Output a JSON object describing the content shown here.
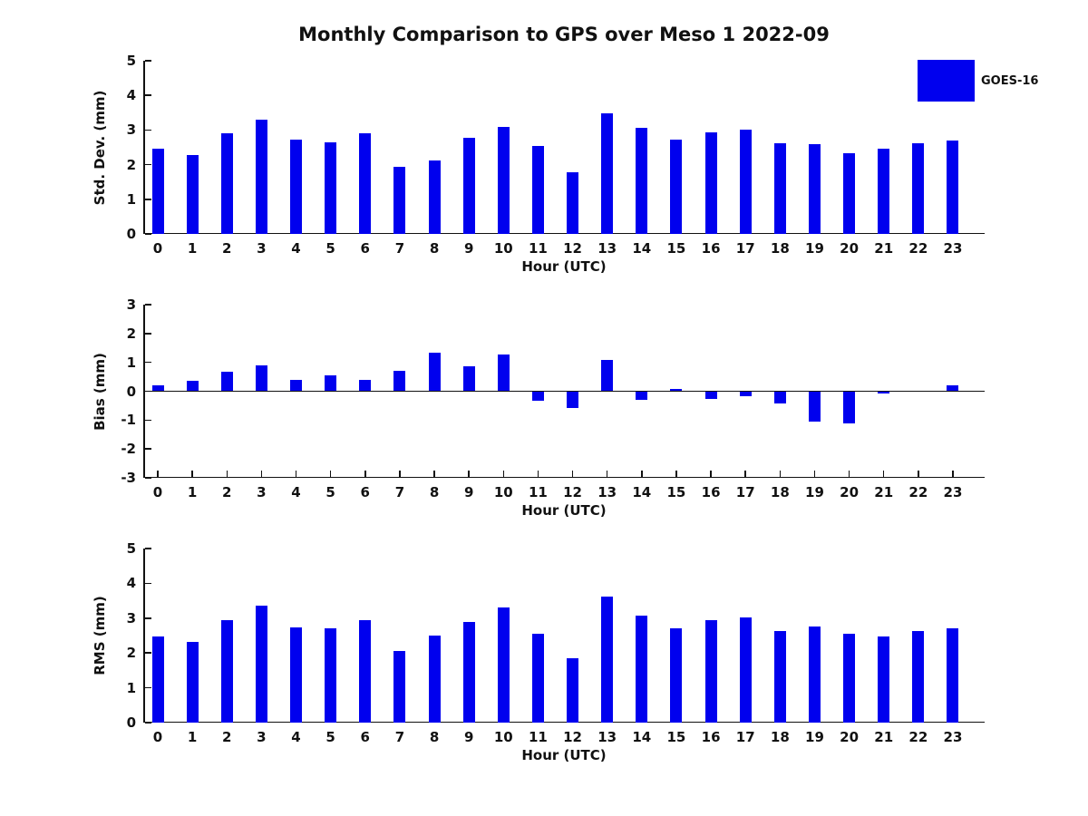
{
  "title": "Monthly Comparison to GPS over Meso 1 2022-09",
  "legend": {
    "label": "GOES-16",
    "color": "#0000ee",
    "position": "top-right"
  },
  "axis_color": "#111111",
  "chart_data": [
    {
      "type": "bar",
      "ylabel": "Std. Dev. (mm)",
      "xlabel": "Hour (UTC)",
      "ylim": [
        0,
        5
      ],
      "yticks": [
        0,
        1,
        2,
        3,
        4,
        5
      ],
      "grid": false,
      "zero_line": false,
      "categories": [
        0,
        1,
        2,
        3,
        4,
        5,
        6,
        7,
        8,
        9,
        10,
        11,
        12,
        13,
        14,
        15,
        16,
        17,
        18,
        19,
        20,
        21,
        22,
        23
      ],
      "series": [
        {
          "name": "GOES-16",
          "values": [
            2.45,
            2.28,
            2.9,
            3.3,
            2.72,
            2.64,
            2.9,
            1.94,
            2.12,
            2.78,
            3.09,
            2.55,
            1.77,
            3.49,
            3.05,
            2.72,
            2.93,
            3.02,
            2.62,
            2.58,
            2.33,
            2.47,
            2.63,
            2.69
          ]
        }
      ]
    },
    {
      "type": "bar",
      "ylabel": "Bias (mm)",
      "xlabel": "Hour (UTC)",
      "ylim": [
        -3,
        3
      ],
      "yticks": [
        3,
        2,
        1,
        0,
        -1,
        -2,
        -3
      ],
      "grid": false,
      "zero_line": true,
      "categories": [
        0,
        1,
        2,
        3,
        4,
        5,
        6,
        7,
        8,
        9,
        10,
        11,
        12,
        13,
        14,
        15,
        16,
        17,
        18,
        19,
        20,
        21,
        22,
        23
      ],
      "series": [
        {
          "name": "GOES-16",
          "values": [
            0.2,
            0.35,
            0.68,
            0.88,
            0.38,
            0.55,
            0.4,
            0.7,
            1.32,
            0.86,
            1.26,
            -0.33,
            -0.57,
            1.07,
            -0.3,
            0.07,
            -0.27,
            -0.17,
            -0.42,
            -1.05,
            -1.1,
            -0.08,
            0.0,
            0.19
          ]
        }
      ]
    },
    {
      "type": "bar",
      "ylabel": "RMS (mm)",
      "xlabel": "Hour (UTC)",
      "ylim": [
        0,
        5
      ],
      "yticks": [
        0,
        1,
        2,
        3,
        4,
        5
      ],
      "grid": false,
      "zero_line": false,
      "categories": [
        0,
        1,
        2,
        3,
        4,
        5,
        6,
        7,
        8,
        9,
        10,
        11,
        12,
        13,
        14,
        15,
        16,
        17,
        18,
        19,
        20,
        21,
        22,
        23
      ],
      "series": [
        {
          "name": "GOES-16",
          "values": [
            2.47,
            2.31,
            2.94,
            3.36,
            2.74,
            2.7,
            2.93,
            2.05,
            2.5,
            2.88,
            3.31,
            2.55,
            1.85,
            3.63,
            3.06,
            2.7,
            2.93,
            3.01,
            2.64,
            2.77,
            2.56,
            2.47,
            2.62,
            2.7
          ]
        }
      ]
    }
  ]
}
